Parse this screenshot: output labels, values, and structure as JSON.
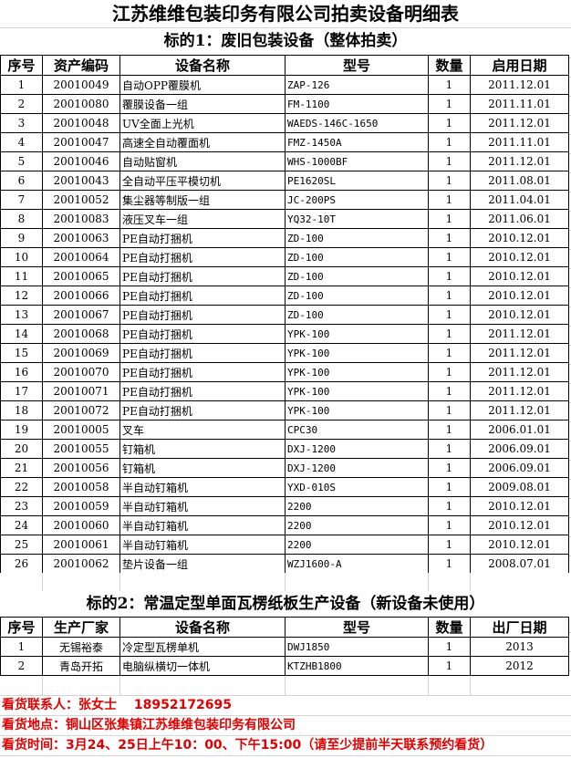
{
  "title": "江苏维维包装印务有限公司拍卖设备明细表",
  "lot1": {
    "subtitle": "标的1：废旧包装设备（整体拍卖）",
    "headers": [
      "序号",
      "资产编码",
      "设备名称",
      "型号",
      "数量",
      "启用日期"
    ],
    "rows": [
      [
        "1",
        "20010049",
        "自动OPP覆膜机",
        "ZAP-126",
        "1",
        "2011.12.01"
      ],
      [
        "2",
        "20010080",
        "覆膜设备一组",
        "FM-1100",
        "1",
        "2011.11.01"
      ],
      [
        "3",
        "20010048",
        "UV全面上光机",
        "WAEDS-146C-1650",
        "1",
        "2011.12.01"
      ],
      [
        "4",
        "20010047",
        "高速全自动覆面机",
        "FMZ-1450A",
        "1",
        "2011.11.01"
      ],
      [
        "5",
        "20010046",
        "自动贴窗机",
        "WHS-1000BF",
        "1",
        "2011.12.01"
      ],
      [
        "6",
        "20010043",
        "全自动平压平模切机",
        "PE1620SL",
        "1",
        "2011.08.01"
      ],
      [
        "7",
        "20010052",
        "集尘器等制版一组",
        "JC-200PS",
        "1",
        "2011.04.01"
      ],
      [
        "8",
        "20010083",
        "液压叉车一组",
        "YQ32-10T",
        "1",
        "2011.06.01"
      ],
      [
        "9",
        "20010063",
        "PE自动打捆机",
        "ZD-100",
        "1",
        "2010.12.01"
      ],
      [
        "10",
        "20010064",
        "PE自动打捆机",
        "ZD-100",
        "1",
        "2010.12.01"
      ],
      [
        "11",
        "20010065",
        "PE自动打捆机",
        "ZD-100",
        "1",
        "2010.12.01"
      ],
      [
        "12",
        "20010066",
        "PE自动打捆机",
        "ZD-100",
        "1",
        "2010.12.01"
      ],
      [
        "13",
        "20010067",
        "PE自动打捆机",
        "ZD-100",
        "1",
        "2010.12.01"
      ],
      [
        "14",
        "20010068",
        "PE自动打捆机",
        "YPK-100",
        "1",
        "2011.12.01"
      ],
      [
        "15",
        "20010069",
        "PE自动打捆机",
        "YPK-100",
        "1",
        "2011.12.01"
      ],
      [
        "16",
        "20010070",
        "PE自动打捆机",
        "YPK-100",
        "1",
        "2011.12.01"
      ],
      [
        "17",
        "20010071",
        "PE自动打捆机",
        "YPK-100",
        "1",
        "2011.12.01"
      ],
      [
        "18",
        "20010072",
        "PE自动打捆机",
        "YPK-100",
        "1",
        "2011.12.01"
      ],
      [
        "19",
        "20010005",
        "叉车",
        "CPC30",
        "1",
        "2006.01.01"
      ],
      [
        "20",
        "20010055",
        "钉箱机",
        "DXJ-1200",
        "1",
        "2006.09.01"
      ],
      [
        "21",
        "20010056",
        "钉箱机",
        "DXJ-1200",
        "1",
        "2006.09.01"
      ],
      [
        "22",
        "20010058",
        "半自动钉箱机",
        "YXD-010S",
        "1",
        "2009.08.01"
      ],
      [
        "23",
        "20010059",
        "半自动钉箱机",
        "2200",
        "1",
        "2010.12.01"
      ],
      [
        "24",
        "20010060",
        "半自动钉箱机",
        "2200",
        "1",
        "2010.12.01"
      ],
      [
        "25",
        "20010061",
        "半自动钉箱机",
        "2200",
        "1",
        "2010.12.01"
      ],
      [
        "26",
        "20010062",
        "垫片设备一组",
        "WZJ1600-A",
        "1",
        "2008.07.01"
      ]
    ]
  },
  "lot2": {
    "subtitle": "标的2：常温定型单面瓦楞纸板生产设备（新设备未使用）",
    "headers": [
      "序号",
      "生产厂家",
      "设备名称",
      "型号",
      "数量",
      "出厂日期"
    ],
    "rows": [
      [
        "1",
        "无锡裕泰",
        "冷定型瓦楞单机",
        "DWJ1850",
        "1",
        "2013"
      ],
      [
        "2",
        "青岛开拓",
        "电脑纵横切一体机",
        "KTZHB1800",
        "1",
        "2012"
      ]
    ]
  },
  "notes": {
    "contact": "看货联系人：张女士　 18952172695",
    "location": "看货地点：铜山区张集镇江苏维维包装印务有限公司",
    "time": "看货时间：3月24、25日上午10：00、下午15:00（请至少提前半天联系预约看货）"
  },
  "colors": {
    "note_text": "#e00000",
    "border": "#000000",
    "gridline": "#d4d4d4"
  }
}
